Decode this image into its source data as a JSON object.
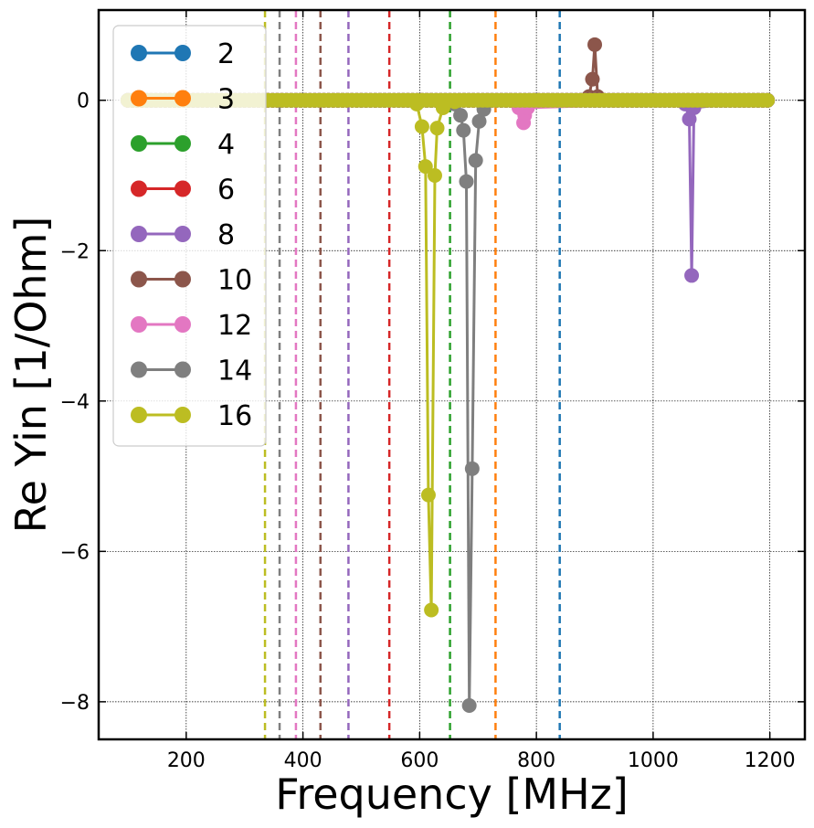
{
  "chart_data": {
    "type": "line",
    "xlabel": "Frequency [MHz]",
    "ylabel": "Re Yin [1/Ohm]",
    "xlim": [
      50,
      1260
    ],
    "ylim": [
      -8.5,
      1.2
    ],
    "xticks": [
      200,
      400,
      600,
      800,
      1000,
      1200
    ],
    "xtick_labels": [
      "200",
      "400",
      "600",
      "800",
      "1000",
      "1200"
    ],
    "yticks": [
      -8,
      -6,
      -4,
      -2,
      0
    ],
    "ytick_labels": [
      "−8",
      "−6",
      "−4",
      "−2",
      "0"
    ],
    "grid": true,
    "legend_position": "upper-left",
    "series": [
      {
        "name": "2",
        "color": "#1f77b4",
        "x": [
          100,
          1200
        ],
        "y": [
          0,
          0
        ]
      },
      {
        "name": "3",
        "color": "#ff7f0e",
        "x": [
          100,
          1200
        ],
        "y": [
          0,
          0
        ]
      },
      {
        "name": "4",
        "color": "#2ca02c",
        "x": [
          100,
          1200
        ],
        "y": [
          0,
          0
        ]
      },
      {
        "name": "6",
        "color": "#d62728",
        "x": [
          100,
          1200
        ],
        "y": [
          0,
          0
        ]
      },
      {
        "name": "8",
        "color": "#9467bd",
        "x": [
          100,
          1040,
          1055,
          1062,
          1066,
          1070,
          1200
        ],
        "y": [
          0,
          0,
          -0.05,
          -0.25,
          -2.33,
          -0.1,
          0
        ]
      },
      {
        "name": "10",
        "color": "#8c564b",
        "x": [
          100,
          880,
          890,
          896,
          900,
          905,
          910,
          1200
        ],
        "y": [
          0,
          0,
          0.05,
          0.28,
          0.74,
          0.05,
          0,
          0
        ]
      },
      {
        "name": "12",
        "color": "#e377c2",
        "x": [
          100,
          760,
          770,
          778,
          780,
          785,
          1200
        ],
        "y": [
          0,
          0,
          -0.1,
          -0.3,
          -0.2,
          -0.1,
          0
        ]
      },
      {
        "name": "14",
        "color": "#7f7f7f",
        "x": [
          100,
          640,
          660,
          670,
          675,
          680,
          685,
          690,
          696,
          702,
          710,
          730,
          1200
        ],
        "y": [
          0,
          0,
          -0.05,
          -0.2,
          -0.4,
          -1.08,
          -8.05,
          -4.9,
          -0.8,
          -0.28,
          -0.12,
          0,
          0
        ]
      },
      {
        "name": "16",
        "color": "#bcbd22",
        "x": [
          100,
          580,
          595,
          604,
          610,
          615,
          620,
          626,
          630,
          640,
          660,
          1200
        ],
        "y": [
          0,
          0,
          -0.05,
          -0.35,
          -0.88,
          -5.25,
          -6.78,
          -1.0,
          -0.37,
          -0.1,
          -0.02,
          0
        ]
      }
    ],
    "vlines": [
      {
        "x": 335,
        "color": "#bcbd22"
      },
      {
        "x": 360,
        "color": "#7f7f7f"
      },
      {
        "x": 388,
        "color": "#e377c2"
      },
      {
        "x": 430,
        "color": "#8c564b"
      },
      {
        "x": 478,
        "color": "#9467bd"
      },
      {
        "x": 548,
        "color": "#d62728"
      },
      {
        "x": 652,
        "color": "#2ca02c"
      },
      {
        "x": 730,
        "color": "#ff7f0e"
      },
      {
        "x": 840,
        "color": "#1f77b4"
      }
    ]
  }
}
